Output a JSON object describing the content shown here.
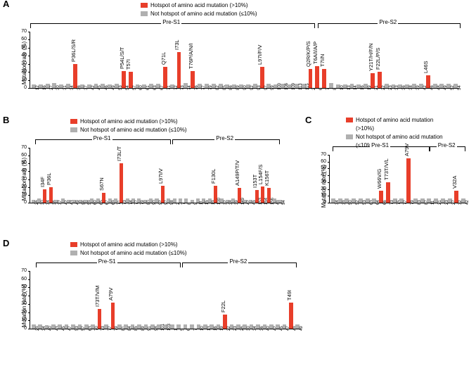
{
  "colors": {
    "hotspot": "#e83e2a",
    "nonhotspot": "#b0b0b0",
    "axis": "#000000"
  },
  "legend": {
    "hot": "Hotspot of amino acid mutation (>10%)",
    "not": "Not hotspot of amino acid mutation (≤10%)",
    "hotShort": "Hotspot of amino acid mutation",
    "hotShort2": "(>10%)",
    "notShort": "Not hotspot of amino acid mutation",
    "notShort2": "(≤10%)"
  },
  "ylabel": "Mutation rate (%)",
  "regions": {
    "ps1": "Pre-S1",
    "ps2": "Pre-S2"
  },
  "panelA": {
    "ylim": 70,
    "ystep": 10,
    "ps1_span": [
      0,
      0.66
    ],
    "ps2_span": [
      0.67,
      1.0
    ],
    "bars": [
      {
        "x": "12",
        "v": 4,
        "h": false
      },
      {
        "x": "16",
        "v": 4,
        "h": false
      },
      {
        "x": "27",
        "v": 5,
        "h": false
      },
      {
        "x": "30",
        "v": 6,
        "h": false
      },
      {
        "x": "31",
        "v": 4,
        "h": false
      },
      {
        "x": "34",
        "v": 5,
        "h": false
      },
      {
        "x": "36",
        "v": 30,
        "h": true,
        "a": "P36L/S/R"
      },
      {
        "x": "37",
        "v": 4,
        "h": false
      },
      {
        "x": "42",
        "v": 4,
        "h": false
      },
      {
        "x": "45",
        "v": 5,
        "h": false
      },
      {
        "x": "46",
        "v": 5,
        "h": false
      },
      {
        "x": "49",
        "v": 4,
        "h": false
      },
      {
        "x": "53",
        "v": 5,
        "h": false
      },
      {
        "x": "54",
        "v": 21,
        "h": true,
        "a": "P54L/S/T"
      },
      {
        "x": "57",
        "v": 20,
        "h": true,
        "a": "T57I"
      },
      {
        "x": "60",
        "v": 4,
        "h": false
      },
      {
        "x": "61",
        "v": 4,
        "h": false
      },
      {
        "x": "63",
        "v": 5,
        "h": false
      },
      {
        "x": "67",
        "v": 5,
        "h": false
      },
      {
        "x": "71",
        "v": 26,
        "h": true,
        "a": "Q71L"
      },
      {
        "x": "72",
        "v": 4,
        "h": false
      },
      {
        "x": "73",
        "v": 45,
        "h": true,
        "a": "I73L"
      },
      {
        "x": "74",
        "v": 6,
        "h": false
      },
      {
        "x": "76",
        "v": 21,
        "h": true,
        "a": "T76P/A/N/I"
      },
      {
        "x": "77",
        "v": 5,
        "h": false
      },
      {
        "x": "79",
        "v": 5,
        "h": false
      },
      {
        "x": "82",
        "v": 5,
        "h": false
      },
      {
        "x": "85",
        "v": 5,
        "h": false
      },
      {
        "x": "86",
        "v": 4,
        "h": false
      },
      {
        "x": "89",
        "v": 4,
        "h": false
      },
      {
        "x": "90",
        "v": 4,
        "h": false
      },
      {
        "x": "92",
        "v": 4,
        "h": false
      },
      {
        "x": "93",
        "v": 5,
        "h": false
      },
      {
        "x": "97",
        "v": 26,
        "h": true,
        "a": "L97I/F/V"
      },
      {
        "x": "99",
        "v": 5,
        "h": false
      },
      {
        "x": "100",
        "v": 4,
        "h": false
      },
      {
        "x": "106",
        "v": 5,
        "h": false
      },
      {
        "x": "109",
        "v": 4,
        "h": false
      },
      {
        "x": "113",
        "v": 5,
        "h": false
      },
      {
        "x": "115",
        "v": 5,
        "h": false
      },
      {
        "x": "2",
        "v": 24,
        "h": true,
        "a": "Q2R/K/P/S"
      },
      {
        "x": "6",
        "v": 27,
        "h": true,
        "a": "T6A/I/A/P"
      },
      {
        "x": "7",
        "v": 24,
        "h": true,
        "a": "T7I/N"
      },
      {
        "x": "8",
        "v": 6,
        "h": false
      },
      {
        "x": "10",
        "v": 4,
        "h": false
      },
      {
        "x": "13",
        "v": 4,
        "h": false
      },
      {
        "x": "14",
        "v": 5,
        "h": false
      },
      {
        "x": "16",
        "v": 4,
        "h": false
      },
      {
        "x": "19",
        "v": 5,
        "h": false
      },
      {
        "x": "21",
        "v": 18,
        "h": true,
        "a": "Y21T/H/F/N"
      },
      {
        "x": "22",
        "v": 20,
        "h": true,
        "a": "F22L/P/S"
      },
      {
        "x": "23",
        "v": 5,
        "h": false
      },
      {
        "x": "33",
        "v": 4,
        "h": false
      },
      {
        "x": "36",
        "v": 4,
        "h": false
      },
      {
        "x": "38",
        "v": 4,
        "h": false
      },
      {
        "x": "39",
        "v": 5,
        "h": false
      },
      {
        "x": "42",
        "v": 5,
        "h": false
      },
      {
        "x": "46",
        "v": 16,
        "h": true,
        "a": "L46S"
      },
      {
        "x": "48",
        "v": 5,
        "h": false
      },
      {
        "x": "49",
        "v": 5,
        "h": false
      },
      {
        "x": "52",
        "v": 5,
        "h": false
      },
      {
        "x": "54",
        "v": 5,
        "h": false
      }
    ]
  },
  "panelB": {
    "ylim": 70,
    "ystep": 10,
    "ps1_span": [
      0.02,
      0.55
    ],
    "ps2_span": [
      0.56,
      0.98
    ],
    "bars": [
      {
        "x": "26",
        "v": 4,
        "h": false
      },
      {
        "x": "30",
        "v": 5,
        "h": false
      },
      {
        "x": "34",
        "v": 17,
        "h": true,
        "a": "I34F"
      },
      {
        "x": "36",
        "v": 20,
        "h": true,
        "a": "P36L"
      },
      {
        "x": "37",
        "v": 4,
        "h": false
      },
      {
        "x": "42",
        "v": 5,
        "h": false
      },
      {
        "x": "43",
        "v": 4,
        "h": false
      },
      {
        "x": "49",
        "v": 4,
        "h": false
      },
      {
        "x": "56",
        "v": 4,
        "h": false
      },
      {
        "x": "59",
        "v": 4,
        "h": false
      },
      {
        "x": "60",
        "v": 5,
        "h": false
      },
      {
        "x": "65",
        "v": 5,
        "h": false
      },
      {
        "x": "67",
        "v": 13,
        "h": true,
        "a": "S67N"
      },
      {
        "x": "69",
        "v": 5,
        "h": false
      },
      {
        "x": "71",
        "v": 5,
        "h": false
      },
      {
        "x": "73",
        "v": 50,
        "h": true,
        "a": "I73L/T"
      },
      {
        "x": "74",
        "v": 5,
        "h": false
      },
      {
        "x": "77",
        "v": 5,
        "h": false
      },
      {
        "x": "79",
        "v": 5,
        "h": false
      },
      {
        "x": "80",
        "v": 4,
        "h": false
      },
      {
        "x": "90",
        "v": 5,
        "h": false
      },
      {
        "x": "92",
        "v": 5,
        "h": false
      },
      {
        "x": "97",
        "v": 22,
        "h": true,
        "a": "L97I/V"
      },
      {
        "x": "98",
        "v": 5,
        "h": false
      },
      {
        "x": "2",
        "v": 5,
        "h": false
      },
      {
        "x": "7",
        "v": 5,
        "h": false
      },
      {
        "x": "8",
        "v": 5,
        "h": false
      },
      {
        "x": "9",
        "v": 4,
        "h": false
      },
      {
        "x": "11",
        "v": 5,
        "h": false
      },
      {
        "x": "15",
        "v": 5,
        "h": false
      },
      {
        "x": "19",
        "v": 5,
        "h": false
      },
      {
        "x": "130",
        "v": 22,
        "h": true,
        "a": "F130L"
      },
      {
        "x": "32",
        "v": 5,
        "h": false
      },
      {
        "x": "38",
        "v": 4,
        "h": false
      },
      {
        "x": "39",
        "v": 5,
        "h": false
      },
      {
        "x": "149",
        "v": 19,
        "h": true,
        "a": "A149P/T/V"
      },
      {
        "x": "42",
        "v": 4,
        "h": false
      },
      {
        "x": "45",
        "v": 4,
        "h": false
      },
      {
        "x": "153",
        "v": 16,
        "h": true,
        "a": "I153T"
      },
      {
        "x": "154",
        "v": 21,
        "h": true,
        "a": "L154F/S"
      },
      {
        "x": "156",
        "v": 19,
        "h": true,
        "a": "K156T"
      },
      {
        "x": "49",
        "v": 5,
        "h": false
      },
      {
        "x": "54",
        "v": 4,
        "h": false
      }
    ]
  },
  "panelC": {
    "ylim": 70,
    "ystep": 10,
    "ps1_span": [
      0.02,
      0.72
    ],
    "ps2_span": [
      0.73,
      0.98
    ],
    "bars": [
      {
        "x": "34",
        "v": 6,
        "h": false
      },
      {
        "x": "39",
        "v": 6,
        "h": false
      },
      {
        "x": "50",
        "v": 6,
        "h": false
      },
      {
        "x": "52",
        "v": 6,
        "h": false
      },
      {
        "x": "53",
        "v": 6,
        "h": false
      },
      {
        "x": "63",
        "v": 6,
        "h": false
      },
      {
        "x": "64",
        "v": 6,
        "h": false
      },
      {
        "x": "66",
        "v": 18,
        "h": true,
        "a": "W66V/G"
      },
      {
        "x": "73",
        "v": 30,
        "h": true,
        "a": "T73T/V/L"
      },
      {
        "x": "75",
        "v": 6,
        "h": false
      },
      {
        "x": "77",
        "v": 6,
        "h": false
      },
      {
        "x": "79",
        "v": 65,
        "h": true,
        "a": "A79V"
      },
      {
        "x": "83",
        "v": 6,
        "h": false
      },
      {
        "x": "87",
        "v": 6,
        "h": false
      },
      {
        "x": "11",
        "v": 6,
        "h": false
      },
      {
        "x": "21",
        "v": 6,
        "h": false
      },
      {
        "x": "23",
        "v": 6,
        "h": false
      },
      {
        "x": "27",
        "v": 6,
        "h": false
      },
      {
        "x": "32",
        "v": 18,
        "h": true,
        "a": "V32A"
      },
      {
        "x": "42",
        "v": 6,
        "h": false
      }
    ]
  },
  "panelD": {
    "ylim": 70,
    "ystep": 10,
    "ps1_span": [
      0.02,
      0.55
    ],
    "ps2_span": [
      0.56,
      0.98
    ],
    "bars": [
      {
        "x": "29",
        "v": 5,
        "h": false
      },
      {
        "x": "34",
        "v": 5,
        "h": false
      },
      {
        "x": "40",
        "v": 4,
        "h": false
      },
      {
        "x": "43",
        "v": 5,
        "h": false
      },
      {
        "x": "45",
        "v": 5,
        "h": false
      },
      {
        "x": "47",
        "v": 5,
        "h": false
      },
      {
        "x": "53",
        "v": 5,
        "h": false
      },
      {
        "x": "57",
        "v": 5,
        "h": false
      },
      {
        "x": "63",
        "v": 5,
        "h": false
      },
      {
        "x": "70",
        "v": 5,
        "h": false
      },
      {
        "x": "73",
        "v": 24,
        "h": true,
        "a": "I73T/V/M"
      },
      {
        "x": "77",
        "v": 5,
        "h": false
      },
      {
        "x": "79",
        "v": 32,
        "h": true,
        "a": "A79V"
      },
      {
        "x": "81",
        "v": 5,
        "h": false
      },
      {
        "x": "84",
        "v": 5,
        "h": false
      },
      {
        "x": "85",
        "v": 5,
        "h": false
      },
      {
        "x": "89",
        "v": 5,
        "h": false
      },
      {
        "x": "91",
        "v": 5,
        "h": false
      },
      {
        "x": "98",
        "v": 5,
        "h": false
      },
      {
        "x": "101",
        "v": 5,
        "h": false
      },
      {
        "x": "103",
        "v": 5,
        "h": false
      },
      {
        "x": "1",
        "v": 5,
        "h": false
      },
      {
        "x": "5",
        "v": 5,
        "h": false
      },
      {
        "x": "6",
        "v": 5,
        "h": false
      },
      {
        "x": "7",
        "v": 5,
        "h": false
      },
      {
        "x": "10",
        "v": 5,
        "h": false
      },
      {
        "x": "13",
        "v": 5,
        "h": false
      },
      {
        "x": "16",
        "v": 5,
        "h": false
      },
      {
        "x": "19",
        "v": 5,
        "h": false
      },
      {
        "x": "22",
        "v": 17,
        "h": true,
        "a": "F22L"
      },
      {
        "x": "23",
        "v": 5,
        "h": false
      },
      {
        "x": "26",
        "v": 5,
        "h": false
      },
      {
        "x": "30",
        "v": 5,
        "h": false
      },
      {
        "x": "34",
        "v": 5,
        "h": false
      },
      {
        "x": "36",
        "v": 5,
        "h": false
      },
      {
        "x": "40",
        "v": 5,
        "h": false
      },
      {
        "x": "42",
        "v": 5,
        "h": false
      },
      {
        "x": "45",
        "v": 5,
        "h": false
      },
      {
        "x": "47",
        "v": 5,
        "h": false
      },
      {
        "x": "49",
        "v": 32,
        "h": true,
        "a": "T49I"
      },
      {
        "x": "49b",
        "v": 5,
        "h": false
      }
    ]
  }
}
